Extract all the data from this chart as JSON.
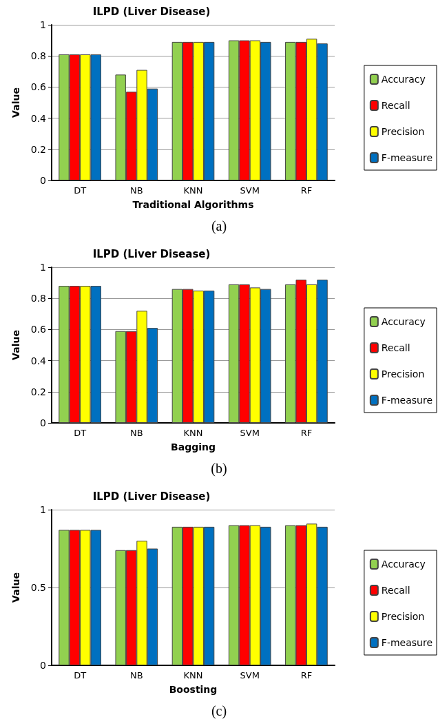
{
  "chart_data": [
    {
      "type": "bar",
      "title": "ILPD (Liver Disease)",
      "xlabel": "Traditional Algorithms",
      "ylabel": "Value",
      "annotations": [
        "(a)"
      ],
      "categories": [
        "DT",
        "NB",
        "KNN",
        "SVM",
        "RF"
      ],
      "ylim": [
        0,
        1
      ],
      "yticks": [
        0,
        0.2,
        0.4,
        0.6,
        0.8,
        1
      ],
      "grid": "y",
      "legend": "right",
      "series": [
        {
          "name": "Accuracy",
          "color": "#92d050",
          "values": [
            0.81,
            0.68,
            0.89,
            0.9,
            0.89
          ]
        },
        {
          "name": "Recall",
          "color": "#ff0000",
          "values": [
            0.81,
            0.57,
            0.89,
            0.9,
            0.89
          ]
        },
        {
          "name": "Precision",
          "color": "#ffff00",
          "values": [
            0.81,
            0.71,
            0.89,
            0.9,
            0.91
          ]
        },
        {
          "name": "F-measure",
          "color": "#0070c0",
          "values": [
            0.81,
            0.59,
            0.89,
            0.89,
            0.88
          ]
        }
      ]
    },
    {
      "type": "bar",
      "title": "ILPD (Liver Disease)",
      "xlabel": "Bagging",
      "ylabel": "Value",
      "annotations": [
        "(b)"
      ],
      "categories": [
        "DT",
        "NB",
        "KNN",
        "SVM",
        "RF"
      ],
      "ylim": [
        0,
        1
      ],
      "yticks": [
        0,
        0.2,
        0.4,
        0.6,
        0.8,
        1
      ],
      "grid": "y",
      "legend": "right",
      "series": [
        {
          "name": "Accuracy",
          "color": "#92d050",
          "values": [
            0.88,
            0.59,
            0.86,
            0.89,
            0.89
          ]
        },
        {
          "name": "Recall",
          "color": "#ff0000",
          "values": [
            0.88,
            0.59,
            0.86,
            0.89,
            0.92
          ]
        },
        {
          "name": "Precision",
          "color": "#ffff00",
          "values": [
            0.88,
            0.72,
            0.85,
            0.87,
            0.89
          ]
        },
        {
          "name": "F-measure",
          "color": "#0070c0",
          "values": [
            0.88,
            0.61,
            0.85,
            0.86,
            0.92
          ]
        }
      ]
    },
    {
      "type": "bar",
      "title": "ILPD (Liver Disease)",
      "xlabel": "Boosting",
      "ylabel": "Value",
      "annotations": [
        "(c)"
      ],
      "categories": [
        "DT",
        "NB",
        "KNN",
        "SVM",
        "RF"
      ],
      "ylim": [
        0,
        1
      ],
      "yticks": [
        0,
        0.5,
        1
      ],
      "grid": "y",
      "legend": "right",
      "series": [
        {
          "name": "Accuracy",
          "color": "#92d050",
          "values": [
            0.87,
            0.74,
            0.89,
            0.9,
            0.9
          ]
        },
        {
          "name": "Recall",
          "color": "#ff0000",
          "values": [
            0.87,
            0.74,
            0.89,
            0.9,
            0.9
          ]
        },
        {
          "name": "Precision",
          "color": "#ffff00",
          "values": [
            0.87,
            0.8,
            0.89,
            0.9,
            0.91
          ]
        },
        {
          "name": "F-measure",
          "color": "#0070c0",
          "values": [
            0.87,
            0.75,
            0.89,
            0.89,
            0.89
          ]
        }
      ]
    }
  ]
}
